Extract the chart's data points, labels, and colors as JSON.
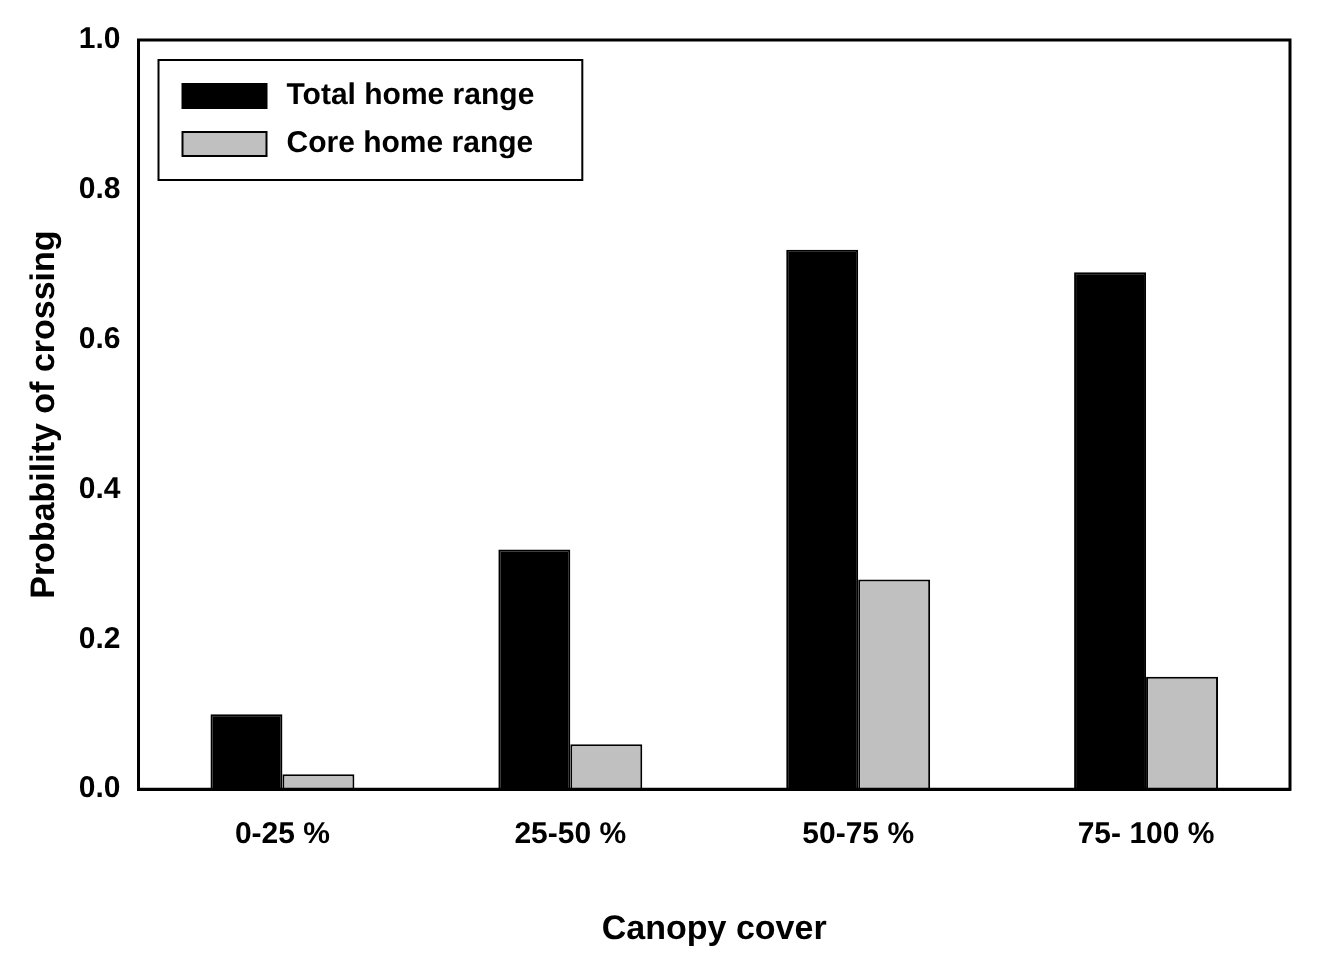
{
  "chart_data": {
    "type": "bar",
    "xlabel": "Canopy cover",
    "ylabel": "Probability of crossing",
    "categories": [
      "0-25 %",
      "25-50 %",
      "50-75 %",
      "75- 100 %"
    ],
    "series": [
      {
        "name": "Total home range",
        "color": "#000000",
        "values": [
          0.1,
          0.32,
          0.72,
          0.69
        ]
      },
      {
        "name": "Core home range",
        "color": "#c0c0c0",
        "values": [
          0.02,
          0.06,
          0.28,
          0.15
        ]
      }
    ],
    "ylim": [
      0,
      1
    ],
    "yticks": [
      {
        "value": 0,
        "label": "0.0"
      },
      {
        "value": 0.2,
        "label": "0.2"
      },
      {
        "value": 0.4,
        "label": "0.4"
      },
      {
        "value": 0.6,
        "label": "0.6"
      },
      {
        "value": 0.8,
        "label": "0.8"
      },
      {
        "value": 1,
        "label": "1.0"
      }
    ],
    "grid": false,
    "legend": "top left"
  }
}
